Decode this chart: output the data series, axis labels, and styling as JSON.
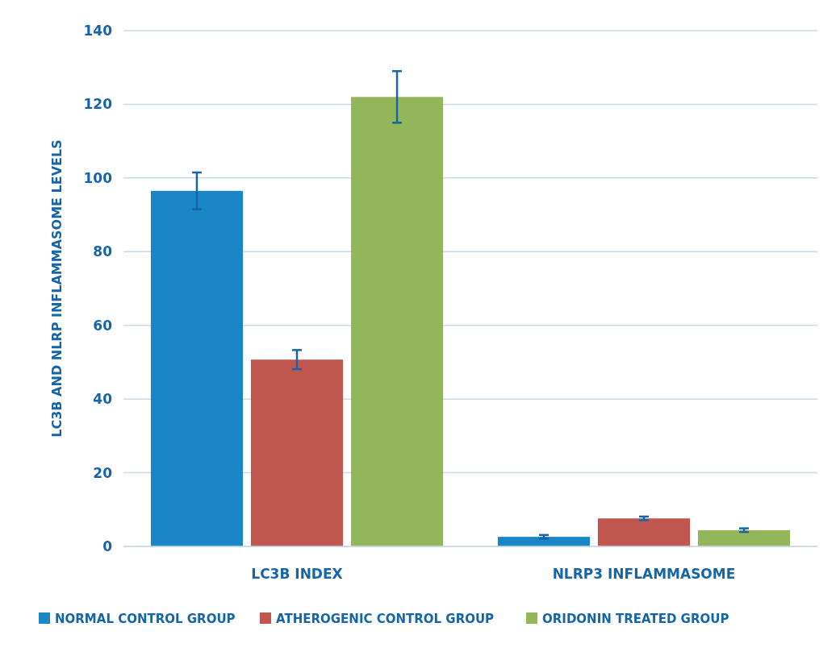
{
  "chart_data": {
    "type": "bar",
    "ylabel": "LC3B AND NLRP INFLAMMASOME LEVELS",
    "categories": [
      "LC3B INDEX",
      "NLRP3 INFLAMMASOME"
    ],
    "series": [
      {
        "name": "NORMAL CONTROL GROUP",
        "color": "#1a86c6",
        "values": [
          96.5,
          2.6
        ],
        "errors": [
          5,
          0.5
        ]
      },
      {
        "name": "ATHEROGENIC CONTROL GROUP",
        "color": "#c0574f",
        "values": [
          50.7,
          7.6
        ],
        "errors": [
          2.6,
          0.5
        ]
      },
      {
        "name": "ORIDONIN TREATED GROUP",
        "color": "#93b65a",
        "values": [
          122,
          4.4
        ],
        "errors": [
          7,
          0.5
        ]
      }
    ],
    "ylim": [
      0,
      140
    ],
    "yticks": [
      0,
      20,
      40,
      60,
      80,
      100,
      120,
      140
    ],
    "grid": "y",
    "legend": "bottom"
  }
}
